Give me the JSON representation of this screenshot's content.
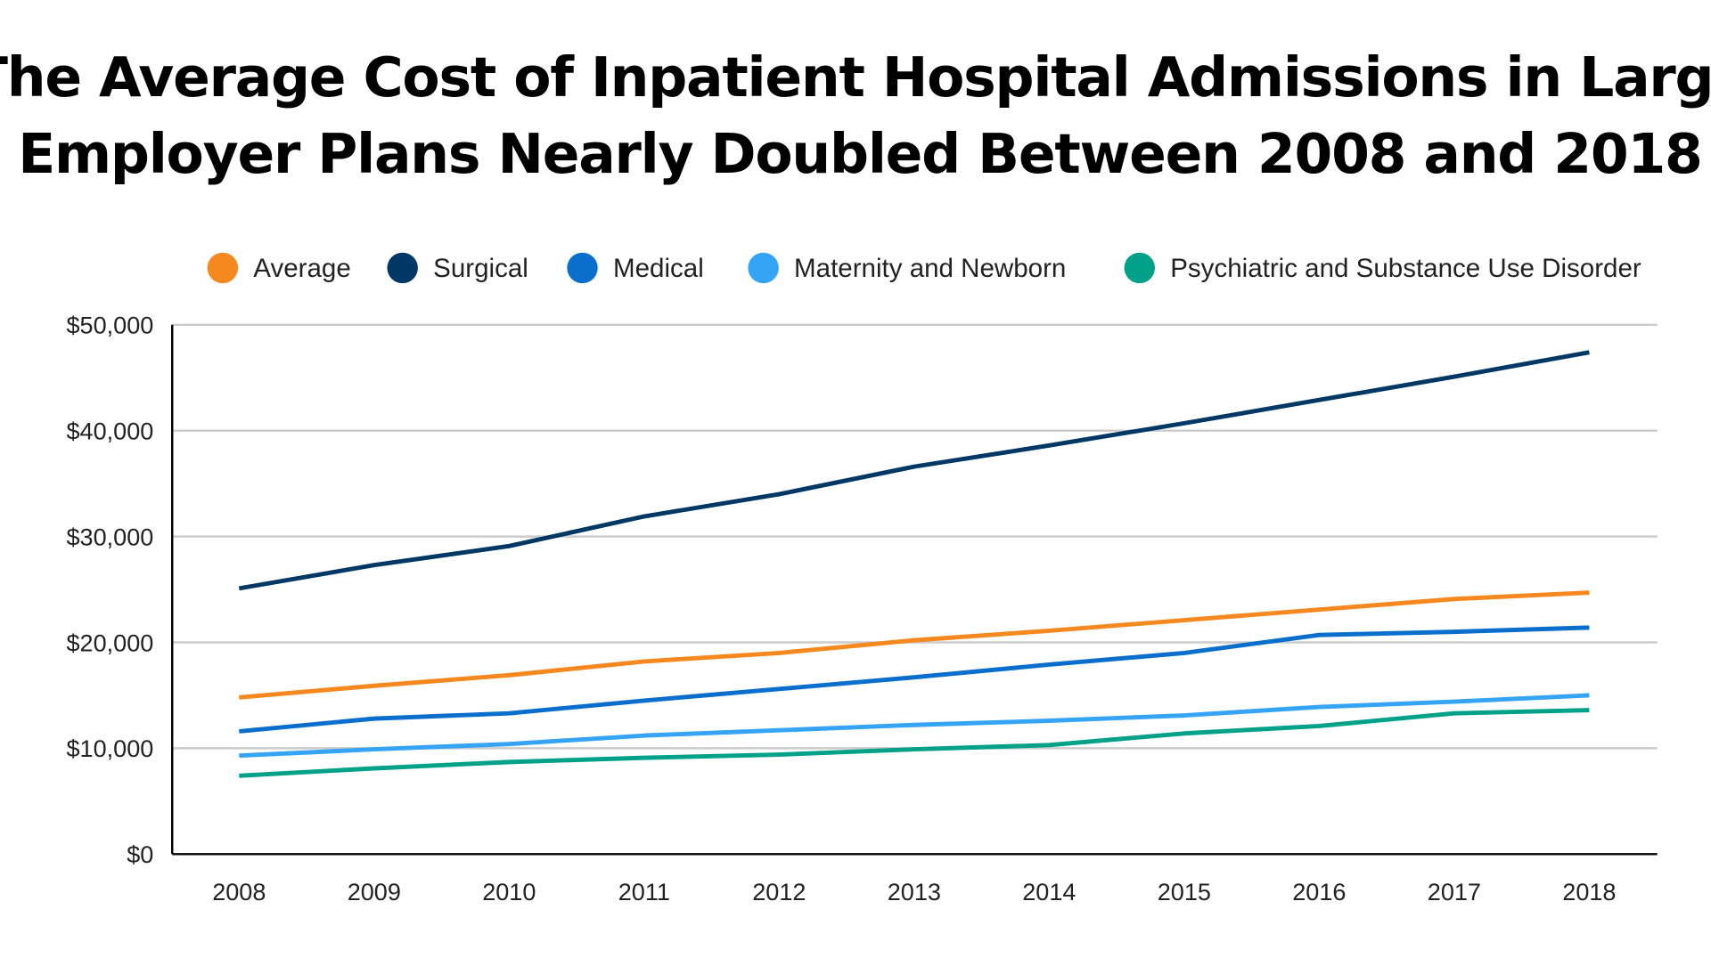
{
  "chart_data": {
    "type": "line",
    "title_lines": [
      "The Average Cost of Inpatient Hospital Admissions in Large",
      "Employer Plans Nearly Doubled Between 2008 and 2018"
    ],
    "xlabel": "",
    "ylabel": "",
    "categories": [
      "2008",
      "2009",
      "2010",
      "2011",
      "2012",
      "2013",
      "2014",
      "2015",
      "2016",
      "2017",
      "2018"
    ],
    "ylim": [
      0,
      50000
    ],
    "y_ticks": [
      0,
      10000,
      20000,
      30000,
      40000,
      50000
    ],
    "y_tick_labels": [
      "$0",
      "$10,000",
      "$20,000",
      "$30,000",
      "$40,000",
      "$50,000"
    ],
    "grid": true,
    "legend_position": "top",
    "series": [
      {
        "name": "Average",
        "color": "#f5891f",
        "values": [
          14800,
          15900,
          16900,
          18200,
          19000,
          20200,
          21100,
          22100,
          23100,
          24100,
          24700
        ]
      },
      {
        "name": "Surgical",
        "color": "#003865",
        "values": [
          25100,
          27300,
          29100,
          31900,
          34000,
          36600,
          38600,
          40700,
          42900,
          45100,
          47400
        ]
      },
      {
        "name": "Medical",
        "color": "#0a6fcc",
        "values": [
          11600,
          12800,
          13300,
          14500,
          15600,
          16700,
          17900,
          19000,
          20700,
          21000,
          21400
        ]
      },
      {
        "name": "Maternity and Newborn",
        "color": "#35a4f4",
        "values": [
          9300,
          9900,
          10400,
          11200,
          11700,
          12200,
          12600,
          13100,
          13900,
          14400,
          15000
        ]
      },
      {
        "name": "Psychiatric and Substance Use Disorder",
        "color": "#00a189",
        "values": [
          7400,
          8100,
          8700,
          9100,
          9400,
          9900,
          10300,
          11400,
          12100,
          13300,
          13600
        ]
      }
    ]
  }
}
